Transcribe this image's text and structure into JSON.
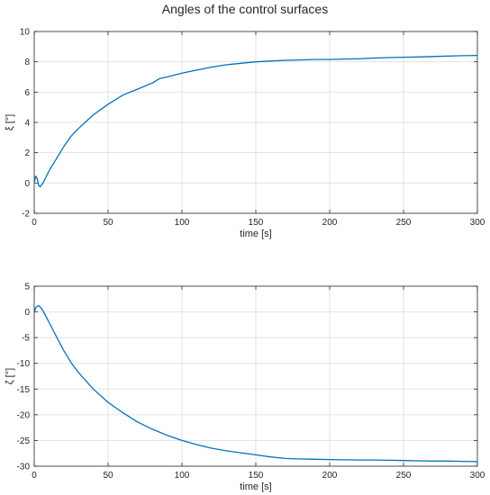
{
  "figure": {
    "title": "Angles of the control surfaces"
  },
  "chart_data": [
    {
      "type": "line",
      "xlabel": "time [s]",
      "ylabel": "ξ [°]",
      "xlim": [
        0,
        300
      ],
      "ylim": [
        -2,
        10
      ],
      "xticks": [
        0,
        50,
        100,
        150,
        200,
        250,
        300
      ],
      "yticks": [
        -2,
        0,
        2,
        4,
        6,
        8,
        10
      ],
      "grid": true,
      "color": "#0072BD",
      "series": [
        {
          "x": [
            0,
            1,
            2,
            3,
            4,
            6,
            8,
            10,
            15,
            20,
            25,
            30,
            40,
            50,
            60,
            70,
            80,
            85,
            90,
            100,
            110,
            120,
            130,
            140,
            150,
            160,
            170,
            180,
            190,
            200,
            210,
            220,
            230,
            240,
            250,
            260,
            270,
            280,
            290,
            300
          ],
          "y": [
            0.0,
            0.45,
            0.3,
            -0.15,
            -0.25,
            0.0,
            0.4,
            0.8,
            1.6,
            2.4,
            3.1,
            3.6,
            4.5,
            5.2,
            5.8,
            6.2,
            6.6,
            6.9,
            7.0,
            7.25,
            7.45,
            7.65,
            7.8,
            7.9,
            8.0,
            8.05,
            8.1,
            8.12,
            8.15,
            8.15,
            8.18,
            8.2,
            8.25,
            8.28,
            8.3,
            8.32,
            8.35,
            8.38,
            8.4,
            8.42
          ]
        }
      ]
    },
    {
      "type": "line",
      "xlabel": "time [s]",
      "ylabel": "ζ [°]",
      "xlim": [
        0,
        300
      ],
      "ylim": [
        -30,
        5
      ],
      "xticks": [
        0,
        50,
        100,
        150,
        200,
        250,
        300
      ],
      "yticks": [
        -30,
        -25,
        -20,
        -15,
        -10,
        -5,
        0,
        5
      ],
      "grid": true,
      "color": "#0072BD",
      "series": [
        {
          "x": [
            0,
            1,
            2,
            3,
            4,
            6,
            8,
            10,
            15,
            20,
            25,
            30,
            40,
            50,
            60,
            70,
            80,
            90,
            100,
            110,
            120,
            130,
            140,
            150,
            160,
            170,
            180,
            190,
            200,
            210,
            220,
            230,
            240,
            250,
            260,
            270,
            280,
            290,
            300
          ],
          "y": [
            0.0,
            0.8,
            1.1,
            1.2,
            1.0,
            0.2,
            -0.9,
            -2.0,
            -4.8,
            -7.5,
            -9.9,
            -11.8,
            -15.0,
            -17.6,
            -19.6,
            -21.4,
            -22.8,
            -24.0,
            -25.0,
            -25.8,
            -26.5,
            -27.0,
            -27.4,
            -27.8,
            -28.2,
            -28.5,
            -28.6,
            -28.65,
            -28.7,
            -28.75,
            -28.8,
            -28.8,
            -28.85,
            -28.9,
            -28.95,
            -29.0,
            -29.0,
            -29.05,
            -29.1
          ]
        }
      ]
    }
  ]
}
